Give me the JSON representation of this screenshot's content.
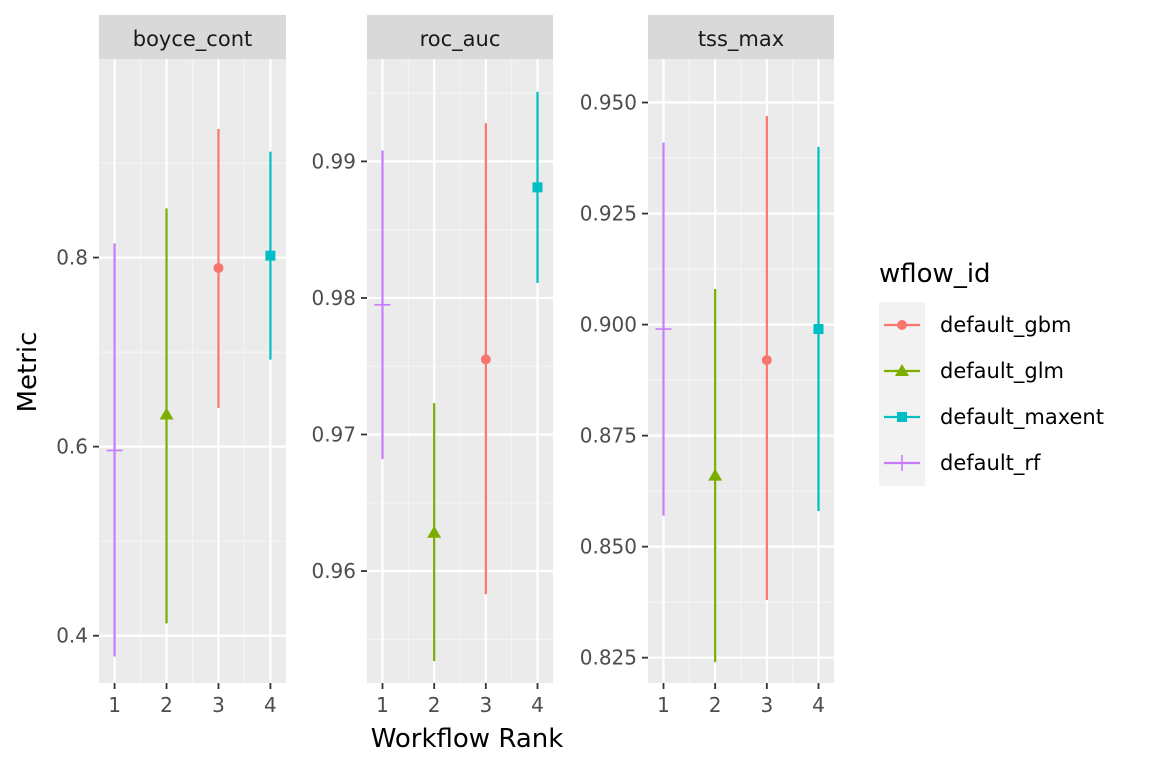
{
  "chart_data": {
    "type": "errorbar",
    "xlabel": "Workflow Rank",
    "ylabel": "Metric",
    "legend": {
      "title": "wflow_id",
      "position": "right",
      "entries": [
        {
          "name": "default_gbm",
          "color": "#F8766D",
          "shape": "circle"
        },
        {
          "name": "default_glm",
          "color": "#7CAE00",
          "shape": "triangle"
        },
        {
          "name": "default_maxent",
          "color": "#00BFC4",
          "shape": "square"
        },
        {
          "name": "default_rf",
          "color": "#C77CFF",
          "shape": "plus"
        }
      ]
    },
    "x_ticks": [
      "1",
      "2",
      "3",
      "4"
    ],
    "facets": [
      {
        "title": "boyce_cont",
        "ylim": [
          0.35,
          1.01
        ],
        "y_ticks": [
          0.4,
          0.6,
          0.8
        ],
        "y_tick_labels": [
          "0.4",
          "0.6",
          "0.8"
        ],
        "points": [
          {
            "rank": 1,
            "wflow": "default_rf",
            "mean": 0.596,
            "lower": 0.378,
            "upper": 0.815
          },
          {
            "rank": 2,
            "wflow": "default_glm",
            "mean": 0.634,
            "lower": 0.413,
            "upper": 0.852
          },
          {
            "rank": 3,
            "wflow": "default_gbm",
            "mean": 0.789,
            "lower": 0.641,
            "upper": 0.936
          },
          {
            "rank": 4,
            "wflow": "default_maxent",
            "mean": 0.802,
            "lower": 0.692,
            "upper": 0.912
          }
        ]
      },
      {
        "title": "roc_auc",
        "ylim": [
          0.9518,
          0.9975
        ],
        "y_ticks": [
          0.96,
          0.97,
          0.98,
          0.99
        ],
        "y_tick_labels": [
          "0.96",
          "0.97",
          "0.98",
          "0.99"
        ],
        "points": [
          {
            "rank": 1,
            "wflow": "default_rf",
            "mean": 0.9795,
            "lower": 0.9682,
            "upper": 0.9908
          },
          {
            "rank": 2,
            "wflow": "default_glm",
            "mean": 0.9628,
            "lower": 0.9534,
            "upper": 0.9723
          },
          {
            "rank": 3,
            "wflow": "default_gbm",
            "mean": 0.9755,
            "lower": 0.9583,
            "upper": 0.9928
          },
          {
            "rank": 4,
            "wflow": "default_maxent",
            "mean": 0.9881,
            "lower": 0.9811,
            "upper": 0.9951
          }
        ]
      },
      {
        "title": "tss_max",
        "ylim": [
          0.8193,
          0.9598
        ],
        "y_ticks": [
          0.825,
          0.85,
          0.875,
          0.9,
          0.925,
          0.95
        ],
        "y_tick_labels": [
          "0.825",
          "0.850",
          "0.875",
          "0.900",
          "0.925",
          "0.950"
        ],
        "points": [
          {
            "rank": 1,
            "wflow": "default_rf",
            "mean": 0.899,
            "lower": 0.857,
            "upper": 0.941
          },
          {
            "rank": 2,
            "wflow": "default_glm",
            "mean": 0.866,
            "lower": 0.824,
            "upper": 0.908
          },
          {
            "rank": 3,
            "wflow": "default_gbm",
            "mean": 0.892,
            "lower": 0.838,
            "upper": 0.947
          },
          {
            "rank": 4,
            "wflow": "default_maxent",
            "mean": 0.899,
            "lower": 0.858,
            "upper": 0.94
          }
        ]
      }
    ]
  }
}
